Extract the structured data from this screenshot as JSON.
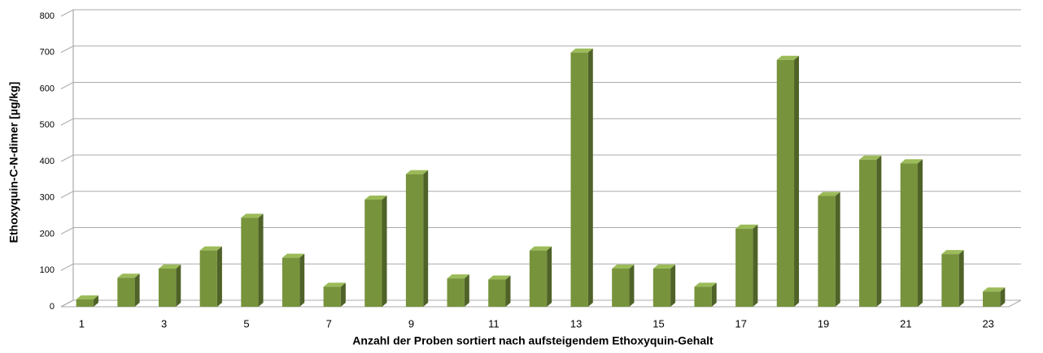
{
  "chart_data": {
    "type": "bar3d",
    "x_label": "Anzahl der Proben sortiert nach aufsteigendem Ethoxyquin-Gehalt",
    "y_label": "Ethoxyquin-C-N-dimer [µg/kg]",
    "categories": [
      "1",
      null,
      "3",
      null,
      "5",
      null,
      "7",
      null,
      "9",
      null,
      "11",
      null,
      "13",
      null,
      "15",
      null,
      "17",
      null,
      "19",
      null,
      "21",
      null,
      "23"
    ],
    "values": [
      20,
      80,
      105,
      155,
      245,
      135,
      55,
      295,
      365,
      78,
      75,
      155,
      700,
      105,
      105,
      55,
      215,
      680,
      305,
      405,
      395,
      145,
      42
    ],
    "color": "#77933c",
    "ylim": [
      0,
      800
    ],
    "yticks": [
      0,
      100,
      200,
      300,
      400,
      500,
      600,
      700,
      800
    ],
    "grid": true
  }
}
